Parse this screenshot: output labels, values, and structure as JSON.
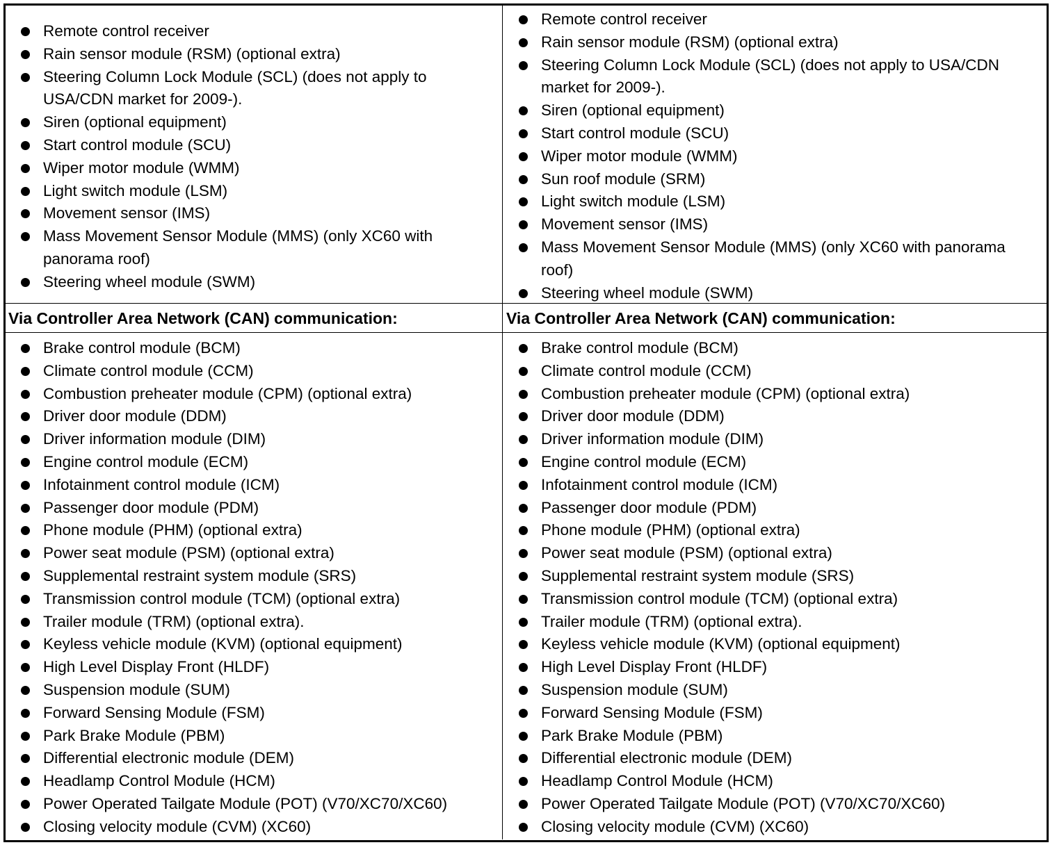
{
  "left": {
    "top_items": [
      "Remote control receiver",
      "Rain sensor module (RSM) (optional extra)",
      "Steering Column Lock Module (SCL) (does not apply to USA/CDN market for 2009-).",
      "Siren (optional equipment)",
      "Start control module (SCU)",
      "Wiper motor module (WMM)",
      "Light switch module (LSM)",
      "Movement sensor (IMS)",
      "Mass Movement Sensor Module (MMS) (only XC60 with panorama roof)",
      "Steering wheel module (SWM)"
    ],
    "heading": "Via Controller Area Network (CAN) communication:",
    "bottom_items": [
      "Brake control module (BCM)",
      "Climate control module (CCM)",
      "Combustion preheater module (CPM) (optional extra)",
      "Driver door module (DDM)",
      "Driver information module (DIM)",
      "Engine control module (ECM)",
      "Infotainment control module (ICM)",
      "Passenger door module (PDM)",
      "Phone module (PHM) (optional extra)",
      "Power seat module (PSM) (optional extra)",
      "Supplemental restraint system module (SRS)",
      "Transmission control module (TCM) (optional extra)",
      "Trailer module (TRM) (optional extra).",
      "Keyless vehicle module (KVM) (optional equipment)",
      "High Level Display Front (HLDF)",
      "Suspension module (SUM)",
      "Forward Sensing Module (FSM)",
      "Park Brake Module (PBM)",
      "Differential electronic module (DEM)",
      "Headlamp Control Module (HCM)",
      "Power Operated Tailgate Module (POT) (V70/XC70/XC60)",
      "Closing velocity module (CVM) (XC60)"
    ]
  },
  "right": {
    "top_items": [
      "Remote control receiver",
      "Rain sensor module (RSM) (optional extra)",
      "Steering Column Lock Module (SCL) (does not apply to USA/CDN market for 2009-).",
      "Siren (optional equipment)",
      "Start control module (SCU)",
      "Wiper motor module (WMM)",
      "Sun roof module (SRM)",
      "Light switch module (LSM)",
      "Movement sensor (IMS)",
      "Mass Movement Sensor Module (MMS) (only XC60 with panorama roof)",
      "Steering wheel module (SWM)"
    ],
    "heading": "Via Controller Area Network (CAN) communication:",
    "bottom_items": [
      "Brake control module (BCM)",
      "Climate control module (CCM)",
      "Combustion preheater module (CPM) (optional extra)",
      "Driver door module (DDM)",
      "Driver information module (DIM)",
      "Engine control module (ECM)",
      "Infotainment control module (ICM)",
      "Passenger door module (PDM)",
      "Phone module (PHM) (optional extra)",
      "Power seat module (PSM) (optional extra)",
      "Supplemental restraint system module (SRS)",
      "Transmission control module (TCM) (optional extra)",
      "Trailer module (TRM) (optional extra).",
      "Keyless vehicle module (KVM) (optional equipment)",
      "High Level Display Front (HLDF)",
      "Suspension module (SUM)",
      "Forward Sensing Module (FSM)",
      "Park Brake Module (PBM)",
      "Differential electronic module (DEM)",
      "Headlamp Control Module (HCM)",
      "Power Operated Tailgate Module (POT) (V70/XC70/XC60)",
      "Closing velocity module (CVM) (XC60)"
    ]
  }
}
